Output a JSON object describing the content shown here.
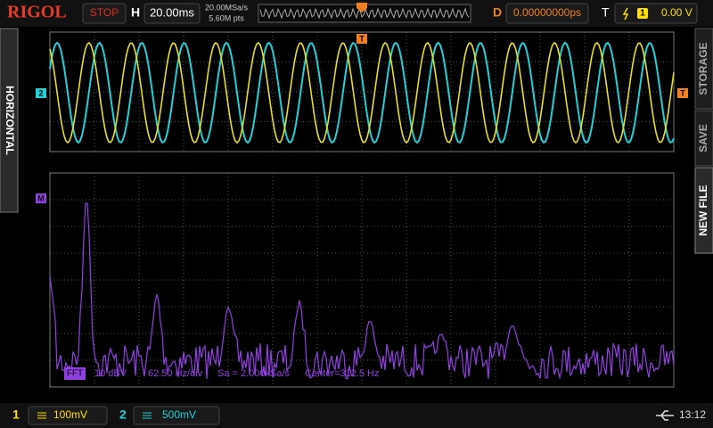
{
  "header": {
    "logo": "RIGOL",
    "status": "STOP",
    "timebase_label": "H",
    "timebase": "20.00ms",
    "sample_rate": "20.00MSa/s",
    "memory_depth": "5.60M pts",
    "delay_label": "D",
    "delay": "0.00000000ps",
    "trigger_label": "T",
    "trigger_source": "1",
    "trigger_level": "0.00 V"
  },
  "side_tabs": {
    "left": "HORIZONTAL",
    "right": [
      "STORAGE",
      "SAVE",
      "NEW FILE"
    ]
  },
  "markers": {
    "channel2": "2",
    "trigger_level": "T",
    "math": "M",
    "trigger_position": "T"
  },
  "fft_info": [
    "FFT",
    "10 dBV",
    "62.50 Hz/div",
    "Sa = 2.000kSa/s",
    "Center=312.5 Hz"
  ],
  "footer": {
    "ch1": "1",
    "ch1_scale": "100mV",
    "ch2": "2",
    "ch2_scale": "500mV",
    "time": "13:12"
  }
}
